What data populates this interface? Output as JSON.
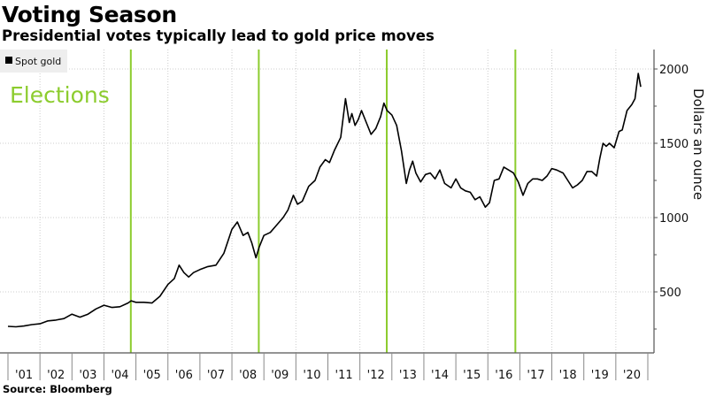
{
  "header": {
    "title": "Voting Season",
    "subtitle": "Presidential votes typically lead to gold price moves"
  },
  "footer": {
    "source": "Source: Bloomberg"
  },
  "colors": {
    "line": "#000000",
    "election": "#8ccc2e",
    "grid": "#cccccc",
    "legend_bg": "#eeeeee"
  },
  "chart_data": {
    "type": "line",
    "title": "Voting Season",
    "subtitle": "Presidential votes typically lead to gold price moves",
    "xlabel": "",
    "ylabel": "Dollars an ounce",
    "y_axis_side": "right",
    "ylim": [
      85,
      2150
    ],
    "xlim": [
      2001.0,
      2021.0
    ],
    "yticks": [
      500,
      1000,
      1500,
      2000
    ],
    "yticks_minor": [
      250,
      750,
      1250,
      1750
    ],
    "xtick_labels": [
      "'01",
      "'02",
      "'03",
      "'04",
      "'05",
      "'06",
      "'07",
      "'08",
      "'09",
      "'10",
      "'11",
      "'12",
      "'13",
      "'14",
      "'15",
      "'16",
      "'17",
      "'18",
      "'19",
      "'20"
    ],
    "grid": true,
    "legend": {
      "placement": "top-left",
      "entries": [
        "Spot gold"
      ]
    },
    "annotation": {
      "text": "Elections",
      "placement": "top-left"
    },
    "election_lines": [
      {
        "label": "2004",
        "x": 2004.84
      },
      {
        "label": "2008",
        "x": 2008.84
      },
      {
        "label": "2012",
        "x": 2012.84
      },
      {
        "label": "2016",
        "x": 2016.86
      }
    ],
    "series": [
      {
        "name": "Spot gold",
        "x": [
          2001.0,
          2001.25,
          2001.5,
          2001.75,
          2002.0,
          2002.25,
          2002.5,
          2002.75,
          2003.0,
          2003.25,
          2003.5,
          2003.75,
          2004.0,
          2004.25,
          2004.5,
          2004.75,
          2004.85,
          2005.0,
          2005.25,
          2005.5,
          2005.75,
          2006.0,
          2006.2,
          2006.35,
          2006.5,
          2006.65,
          2006.8,
          2007.0,
          2007.25,
          2007.5,
          2007.75,
          2008.0,
          2008.17,
          2008.35,
          2008.5,
          2008.62,
          2008.75,
          2008.85,
          2009.0,
          2009.2,
          2009.4,
          2009.6,
          2009.75,
          2009.92,
          2010.05,
          2010.2,
          2010.4,
          2010.6,
          2010.75,
          2010.92,
          2011.05,
          2011.2,
          2011.4,
          2011.55,
          2011.67,
          2011.75,
          2011.85,
          2011.95,
          2012.05,
          2012.2,
          2012.35,
          2012.5,
          2012.65,
          2012.75,
          2012.85,
          2013.0,
          2013.15,
          2013.3,
          2013.45,
          2013.55,
          2013.65,
          2013.75,
          2013.9,
          2014.05,
          2014.2,
          2014.35,
          2014.5,
          2014.65,
          2014.85,
          2015.0,
          2015.15,
          2015.3,
          2015.45,
          2015.6,
          2015.75,
          2015.92,
          2016.05,
          2016.2,
          2016.35,
          2016.5,
          2016.65,
          2016.8,
          2016.95,
          2017.1,
          2017.25,
          2017.4,
          2017.55,
          2017.7,
          2017.85,
          2018.0,
          2018.15,
          2018.35,
          2018.5,
          2018.65,
          2018.8,
          2018.95,
          2019.1,
          2019.25,
          2019.4,
          2019.5,
          2019.6,
          2019.7,
          2019.8,
          2019.95,
          2020.1,
          2020.2,
          2020.35,
          2020.5,
          2020.6,
          2020.7,
          2020.78
        ],
        "values": [
          268,
          265,
          270,
          280,
          285,
          305,
          310,
          320,
          350,
          330,
          350,
          385,
          410,
          395,
          400,
          425,
          440,
          430,
          430,
          425,
          470,
          550,
          590,
          680,
          630,
          600,
          630,
          650,
          670,
          680,
          760,
          920,
          970,
          880,
          900,
          830,
          730,
          800,
          880,
          900,
          950,
          1000,
          1050,
          1150,
          1090,
          1110,
          1210,
          1250,
          1340,
          1390,
          1370,
          1450,
          1540,
          1800,
          1640,
          1700,
          1620,
          1660,
          1720,
          1640,
          1560,
          1600,
          1680,
          1770,
          1720,
          1690,
          1620,
          1450,
          1230,
          1320,
          1380,
          1300,
          1240,
          1290,
          1300,
          1260,
          1320,
          1230,
          1200,
          1260,
          1200,
          1180,
          1170,
          1120,
          1140,
          1070,
          1100,
          1250,
          1260,
          1340,
          1320,
          1300,
          1240,
          1150,
          1230,
          1260,
          1260,
          1250,
          1280,
          1330,
          1320,
          1300,
          1250,
          1200,
          1220,
          1250,
          1310,
          1310,
          1280,
          1400,
          1500,
          1480,
          1500,
          1470,
          1580,
          1590,
          1720,
          1760,
          1800,
          1970,
          1880
        ]
      }
    ]
  }
}
